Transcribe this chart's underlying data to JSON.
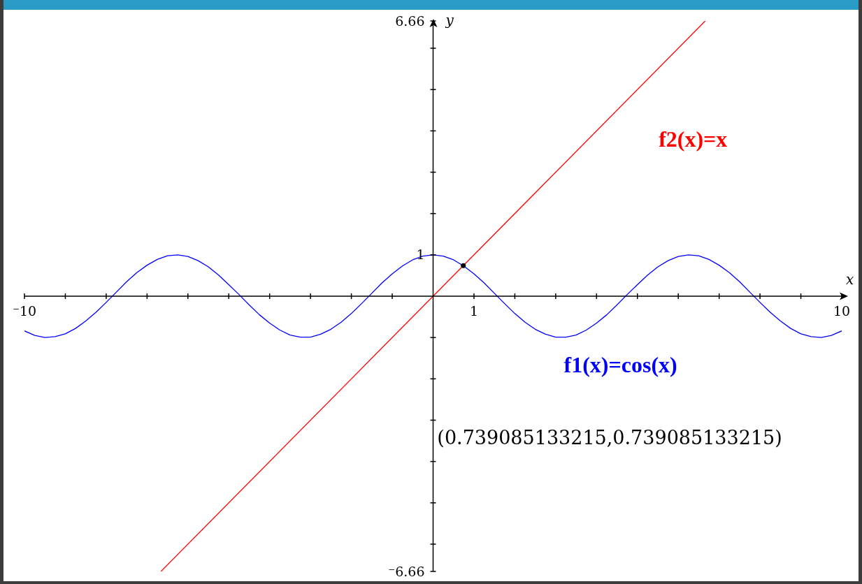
{
  "chart_data": {
    "type": "line",
    "xlim": [
      -10,
      10
    ],
    "ylim": [
      -6.66,
      6.66
    ],
    "xticks": [
      {
        "value": -10,
        "label": "⁻10"
      },
      {
        "value": -9,
        "label": null
      },
      {
        "value": -8,
        "label": null
      },
      {
        "value": -7,
        "label": null
      },
      {
        "value": -6,
        "label": null
      },
      {
        "value": -5,
        "label": null
      },
      {
        "value": -4,
        "label": null
      },
      {
        "value": -3,
        "label": null
      },
      {
        "value": -2,
        "label": null
      },
      {
        "value": -1,
        "label": null
      },
      1,
      {
        "value": 2,
        "label": null
      },
      {
        "value": 3,
        "label": null
      },
      {
        "value": 4,
        "label": null
      },
      {
        "value": 5,
        "label": null
      },
      {
        "value": 6,
        "label": null
      },
      {
        "value": 7,
        "label": null
      },
      {
        "value": 8,
        "label": null
      },
      {
        "value": 9,
        "label": null
      },
      10
    ],
    "yticks": [
      {
        "value": -6.66,
        "label": "⁻6.66"
      },
      {
        "value": -6,
        "label": null
      },
      {
        "value": -5,
        "label": null
      },
      {
        "value": -4,
        "label": null
      },
      {
        "value": -3,
        "label": null
      },
      {
        "value": -2,
        "label": null
      },
      {
        "value": -1,
        "label": null
      },
      1,
      {
        "value": 2,
        "label": null
      },
      {
        "value": 3,
        "label": null
      },
      {
        "value": 4,
        "label": null
      },
      {
        "value": 5,
        "label": null
      },
      {
        "value": 6,
        "label": null
      },
      6.66
    ],
    "xlabel": "x",
    "ylabel": "y",
    "series": [
      {
        "name": "f1(x)=cos(x)",
        "color": "#0000ff",
        "marker": "none",
        "x": [
          -10,
          -9.75,
          -9.5,
          -9.25,
          -9,
          -8.75,
          -8.5,
          -8.25,
          -8,
          -7.75,
          -7.5,
          -7.25,
          -7,
          -6.75,
          -6.5,
          -6.25,
          -6,
          -5.75,
          -5.5,
          -5.25,
          -5,
          -4.75,
          -4.5,
          -4.25,
          -4,
          -3.75,
          -3.5,
          -3.25,
          -3,
          -2.75,
          -2.5,
          -2.25,
          -2,
          -1.75,
          -1.5,
          -1.25,
          -1,
          -0.75,
          -0.5,
          -0.25,
          0,
          0.25,
          0.5,
          0.75,
          1,
          1.25,
          1.5,
          1.75,
          2,
          2.25,
          2.5,
          2.75,
          3,
          3.25,
          3.5,
          3.75,
          4,
          4.25,
          4.5,
          4.75,
          5,
          5.25,
          5.5,
          5.75,
          6,
          6.25,
          6.5,
          6.75,
          7,
          7.25,
          7.5,
          7.75,
          8,
          8.25,
          8.5,
          8.75,
          9,
          9.25,
          9.5,
          9.75,
          10
        ],
        "values": [
          -0.84,
          -0.95,
          -1.0,
          -0.98,
          -0.91,
          -0.78,
          -0.6,
          -0.39,
          -0.15,
          0.1,
          0.35,
          0.57,
          0.75,
          0.89,
          0.98,
          1.0,
          0.96,
          0.86,
          0.71,
          0.51,
          0.28,
          0.04,
          -0.21,
          -0.45,
          -0.65,
          -0.82,
          -0.94,
          -0.99,
          -0.99,
          -0.92,
          -0.8,
          -0.63,
          -0.42,
          -0.18,
          0.07,
          0.32,
          0.54,
          0.73,
          0.88,
          0.97,
          1.0,
          0.97,
          0.88,
          0.73,
          0.54,
          0.32,
          0.07,
          -0.18,
          -0.42,
          -0.63,
          -0.8,
          -0.92,
          -0.99,
          -0.99,
          -0.94,
          -0.82,
          -0.65,
          -0.45,
          -0.21,
          0.04,
          0.28,
          0.51,
          0.71,
          0.86,
          0.96,
          1.0,
          0.98,
          0.89,
          0.75,
          0.57,
          0.35,
          0.1,
          -0.15,
          -0.39,
          -0.6,
          -0.78,
          -0.91,
          -0.98,
          -1.0,
          -0.95,
          -0.84
        ]
      },
      {
        "name": "f2(x)=x",
        "color": "#ff0000",
        "marker": "none",
        "x": [
          -6.66,
          6.66
        ],
        "values": [
          -6.66,
          6.66
        ]
      },
      {
        "type": "scatter",
        "color": "#000000",
        "marker": "circle",
        "x": [
          0.739085133215
        ],
        "values": [
          0.739085133215
        ]
      }
    ],
    "annotations": [
      "(0.739085133215,0.739085133215)"
    ]
  }
}
